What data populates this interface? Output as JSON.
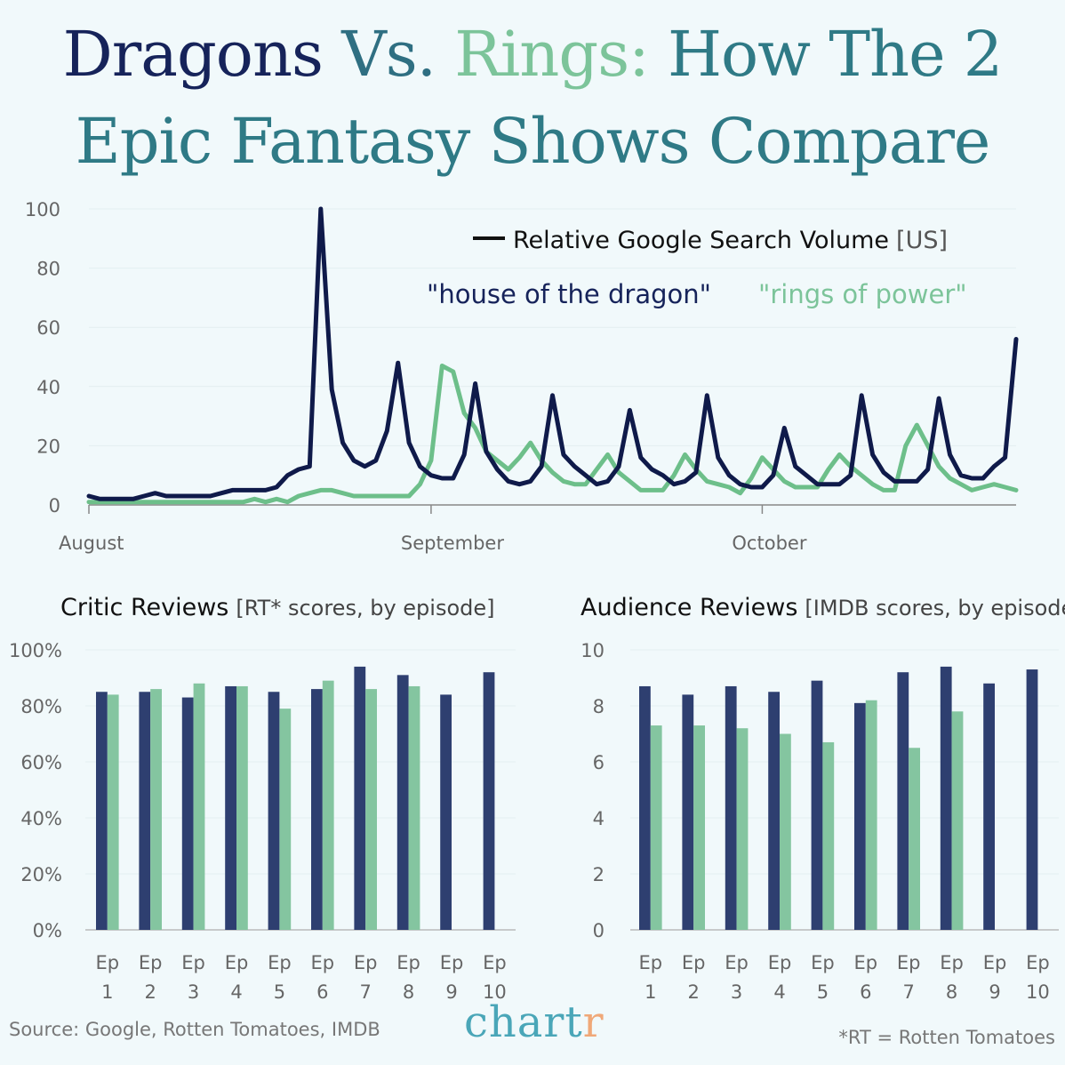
{
  "title": {
    "line1_word1": "Dragons",
    "line1_word2": "Vs.",
    "line1_word3": "Rings:",
    "line1_rest": "How The 2",
    "line2": "Epic Fantasy Shows Compare"
  },
  "colors": {
    "dragon_line": "#0f1a4a",
    "rings_line": "#6dbf8a",
    "dragon_bar": "#2e3f70",
    "rings_bar": "#84c5a0",
    "background": "#f1f9fb"
  },
  "chart_data": [
    {
      "type": "line",
      "legend": {
        "title": "Relative Google Search Volume",
        "qualifier": "[US]",
        "placement": "top-right"
      },
      "ylim": [
        0,
        100
      ],
      "yticks": [
        "0",
        "20",
        "40",
        "60",
        "80",
        "100"
      ],
      "xtick_labels": [
        {
          "label": "August",
          "date": "Aug 1"
        },
        {
          "label": "September",
          "date": "Sep 1"
        },
        {
          "label": "October",
          "date": "Oct 1"
        }
      ],
      "grid": true,
      "x": [
        "Aug 1",
        "Aug 2",
        "Aug 3",
        "Aug 4",
        "Aug 5",
        "Aug 6",
        "Aug 7",
        "Aug 8",
        "Aug 9",
        "Aug 10",
        "Aug 11",
        "Aug 12",
        "Aug 13",
        "Aug 14",
        "Aug 15",
        "Aug 16",
        "Aug 17",
        "Aug 18",
        "Aug 19",
        "Aug 20",
        "Aug 21",
        "Aug 22",
        "Aug 23",
        "Aug 24",
        "Aug 25",
        "Aug 26",
        "Aug 27",
        "Aug 28",
        "Aug 29",
        "Aug 30",
        "Aug 31",
        "Sep 1",
        "Sep 2",
        "Sep 3",
        "Sep 4",
        "Sep 5",
        "Sep 6",
        "Sep 7",
        "Sep 8",
        "Sep 9",
        "Sep 10",
        "Sep 11",
        "Sep 12",
        "Sep 13",
        "Sep 14",
        "Sep 15",
        "Sep 16",
        "Sep 17",
        "Sep 18",
        "Sep 19",
        "Sep 20",
        "Sep 21",
        "Sep 22",
        "Sep 23",
        "Sep 24",
        "Sep 25",
        "Sep 26",
        "Sep 27",
        "Sep 28",
        "Sep 29",
        "Sep 30",
        "Oct 1",
        "Oct 2",
        "Oct 3",
        "Oct 4",
        "Oct 5",
        "Oct 6",
        "Oct 7",
        "Oct 8",
        "Oct 9",
        "Oct 10",
        "Oct 11",
        "Oct 12",
        "Oct 13",
        "Oct 14",
        "Oct 15",
        "Oct 16",
        "Oct 17",
        "Oct 18",
        "Oct 19",
        "Oct 20",
        "Oct 21",
        "Oct 22",
        "Oct 23",
        "Oct 24"
      ],
      "series": [
        {
          "name": "\"house of the dragon\"",
          "color": "#0f1a4a",
          "values": [
            3,
            2,
            2,
            2,
            2,
            3,
            4,
            3,
            3,
            3,
            3,
            3,
            4,
            5,
            5,
            5,
            5,
            6,
            10,
            12,
            13,
            100,
            39,
            21,
            15,
            13,
            15,
            25,
            48,
            21,
            13,
            10,
            9,
            9,
            17,
            41,
            18,
            12,
            8,
            7,
            8,
            13,
            37,
            17,
            13,
            10,
            7,
            8,
            13,
            32,
            16,
            12,
            10,
            7,
            8,
            11,
            37,
            16,
            10,
            7,
            6,
            6,
            10,
            26,
            13,
            10,
            7,
            7,
            7,
            10,
            37,
            17,
            11,
            8,
            8,
            8,
            12,
            36,
            17,
            10,
            9,
            9,
            13,
            16,
            56
          ]
        },
        {
          "name": "\"rings of power\"",
          "color": "#6dbf8a",
          "values": [
            1,
            1,
            1,
            1,
            1,
            1,
            1,
            1,
            1,
            1,
            1,
            1,
            1,
            1,
            1,
            2,
            1,
            2,
            1,
            3,
            4,
            5,
            5,
            4,
            3,
            3,
            3,
            3,
            3,
            3,
            7,
            15,
            47,
            45,
            31,
            26,
            18,
            15,
            12,
            16,
            21,
            15,
            11,
            8,
            7,
            7,
            12,
            17,
            11,
            8,
            5,
            5,
            5,
            10,
            17,
            12,
            8,
            7,
            6,
            4,
            9,
            16,
            12,
            8,
            6,
            6,
            6,
            12,
            17,
            13,
            10,
            7,
            5,
            5,
            20,
            27,
            20,
            13,
            9,
            7,
            5,
            6,
            7,
            6,
            5
          ]
        }
      ]
    },
    {
      "type": "bar",
      "title": "Critic Reviews",
      "subtitle": "[RT* scores, by episode]",
      "ylim": [
        0,
        100
      ],
      "yticks": [
        "0%",
        "20%",
        "40%",
        "60%",
        "80%",
        "100%"
      ],
      "categories": [
        [
          "Ep",
          "1"
        ],
        [
          "Ep",
          "2"
        ],
        [
          "Ep",
          "3"
        ],
        [
          "Ep",
          "4"
        ],
        [
          "Ep",
          "5"
        ],
        [
          "Ep",
          "6"
        ],
        [
          "Ep",
          "7"
        ],
        [
          "Ep",
          "8"
        ],
        [
          "Ep",
          "9"
        ],
        [
          "Ep",
          "10"
        ]
      ],
      "series": [
        {
          "color": "#2e3f70",
          "values": [
            85,
            85,
            83,
            87,
            85,
            86,
            94,
            91,
            84,
            92
          ]
        },
        {
          "color": "#84c5a0",
          "values": [
            84,
            86,
            88,
            87,
            79,
            89,
            86,
            87,
            null,
            null
          ]
        }
      ]
    },
    {
      "type": "bar",
      "title": "Audience Reviews",
      "subtitle": "[IMDB scores, by episode]",
      "ylim": [
        0,
        10
      ],
      "yticks": [
        "0",
        "2",
        "4",
        "6",
        "8",
        "10"
      ],
      "categories": [
        [
          "Ep",
          "1"
        ],
        [
          "Ep",
          "2"
        ],
        [
          "Ep",
          "3"
        ],
        [
          "Ep",
          "4"
        ],
        [
          "Ep",
          "5"
        ],
        [
          "Ep",
          "6"
        ],
        [
          "Ep",
          "7"
        ],
        [
          "Ep",
          "8"
        ],
        [
          "Ep",
          "9"
        ],
        [
          "Ep",
          "10"
        ]
      ],
      "series": [
        {
          "color": "#2e3f70",
          "values": [
            8.7,
            8.4,
            8.7,
            8.5,
            8.9,
            8.1,
            9.2,
            9.4,
            8.8,
            9.3
          ]
        },
        {
          "color": "#84c5a0",
          "values": [
            7.3,
            7.3,
            7.2,
            7.0,
            6.7,
            8.2,
            6.5,
            7.8,
            null,
            null
          ]
        }
      ]
    }
  ],
  "footer": {
    "source": "Source: Google, Rotten Tomatoes, IMDB",
    "logo_main": "chart",
    "logo_end": "r",
    "note": "*RT = Rotten Tomatoes"
  }
}
